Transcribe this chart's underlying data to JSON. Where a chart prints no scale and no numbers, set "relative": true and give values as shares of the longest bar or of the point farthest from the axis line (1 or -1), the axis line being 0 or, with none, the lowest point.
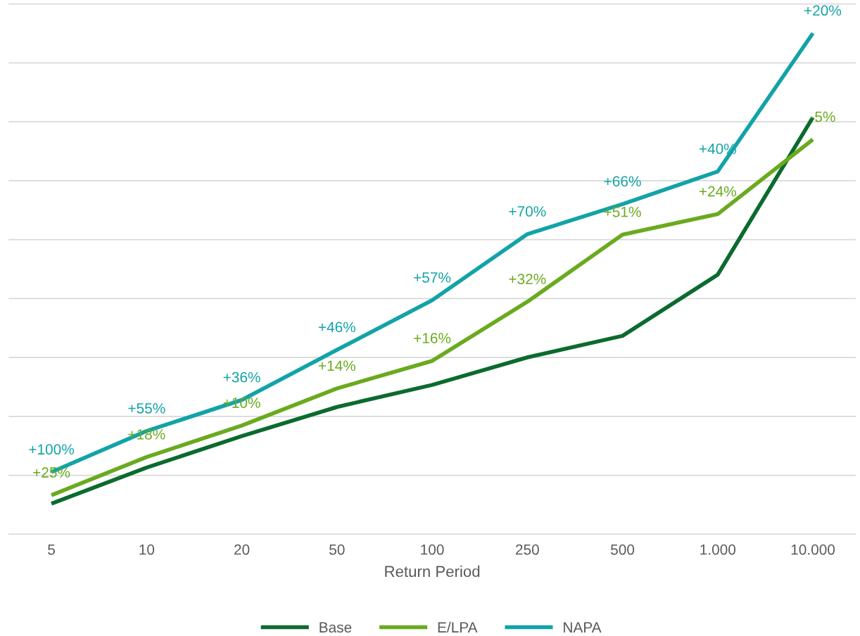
{
  "chart_data": {
    "type": "line",
    "xlabel": "Return Period",
    "categories": [
      "5",
      "10",
      "20",
      "50",
      "100",
      "250",
      "500",
      "1.000",
      "10.000"
    ],
    "relative": true,
    "grid": "y",
    "legend": "bottom",
    "marker": "none",
    "line_style": "solid",
    "series": [
      {
        "name": "Base",
        "color": "#0b6b2e",
        "values": [
          0.061,
          0.133,
          0.196,
          0.254,
          0.298,
          0.353,
          0.396,
          0.518,
          0.832
        ]
      },
      {
        "name": "E/LPA",
        "color": "#6aaa1f",
        "values": [
          0.078,
          0.154,
          0.217,
          0.291,
          0.346,
          0.464,
          0.598,
          0.639,
          0.788
        ]
      },
      {
        "name": "NAPA",
        "color": "#12a3a8",
        "values": [
          0.124,
          0.206,
          0.268,
          0.368,
          0.467,
          0.599,
          0.659,
          0.724,
          1
        ]
      }
    ],
    "annotations": [
      {
        "text": "+25%",
        "x": "5",
        "y": 0.078
      },
      {
        "text": "+18%",
        "x": "10",
        "y": 0.154
      },
      {
        "text": "+10%",
        "x": "20",
        "y": 0.217
      },
      {
        "text": "+14%",
        "x": "50",
        "y": 0.291
      },
      {
        "text": "+16%",
        "x": "100",
        "y": 0.346
      },
      {
        "text": "+32%",
        "x": "250",
        "y": 0.464
      },
      {
        "text": "+51%",
        "x": "500",
        "y": 0.598
      },
      {
        "text": "+24%",
        "x": "1.000",
        "y": 0.639
      },
      {
        "text": "-5%",
        "x": "10.000",
        "y": 0.788
      },
      {
        "text": "+100%",
        "x": "5",
        "y": 0.124
      },
      {
        "text": "+55%",
        "x": "10",
        "y": 0.206
      },
      {
        "text": "+36%",
        "x": "20",
        "y": 0.268
      },
      {
        "text": "+46%",
        "x": "50",
        "y": 0.368
      },
      {
        "text": "+57%",
        "x": "100",
        "y": 0.467
      },
      {
        "text": "+70%",
        "x": "250",
        "y": 0.599
      },
      {
        "text": "+66%",
        "x": "500",
        "y": 0.659
      },
      {
        "text": "+40%",
        "x": "1.000",
        "y": 0.724
      },
      {
        "text": "+20%",
        "x": "10.000",
        "y": 1
      }
    ]
  }
}
